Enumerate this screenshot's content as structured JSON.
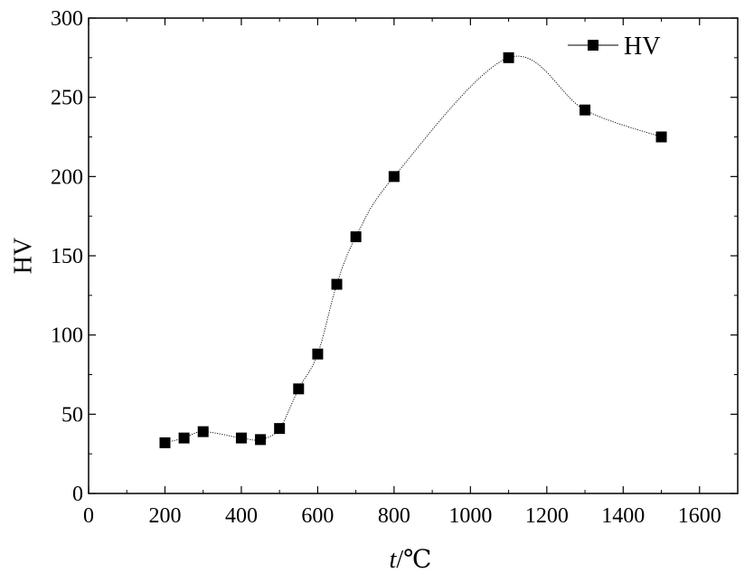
{
  "chart_data": {
    "type": "line",
    "title": "",
    "xlabel": "t/℃",
    "xlabel_var": "t",
    "xlabel_unit": "/℃",
    "ylabel": "HV",
    "xlim": [
      0,
      1700
    ],
    "ylim": [
      0,
      300
    ],
    "x_ticks": [
      0,
      200,
      400,
      600,
      800,
      1000,
      1200,
      1400,
      1600
    ],
    "y_ticks": [
      0,
      50,
      100,
      150,
      200,
      250,
      300
    ],
    "grid": false,
    "legend_position": "top-right",
    "series": [
      {
        "name": "HV",
        "marker": "square",
        "line_style": "dotted-smooth",
        "color": "#000000",
        "x": [
          200,
          250,
          300,
          400,
          450,
          500,
          550,
          600,
          650,
          700,
          800,
          1100,
          1300,
          1500
        ],
        "y": [
          32,
          35,
          39,
          35,
          34,
          41,
          66,
          88,
          132,
          162,
          200,
          275,
          242,
          225
        ]
      }
    ]
  }
}
